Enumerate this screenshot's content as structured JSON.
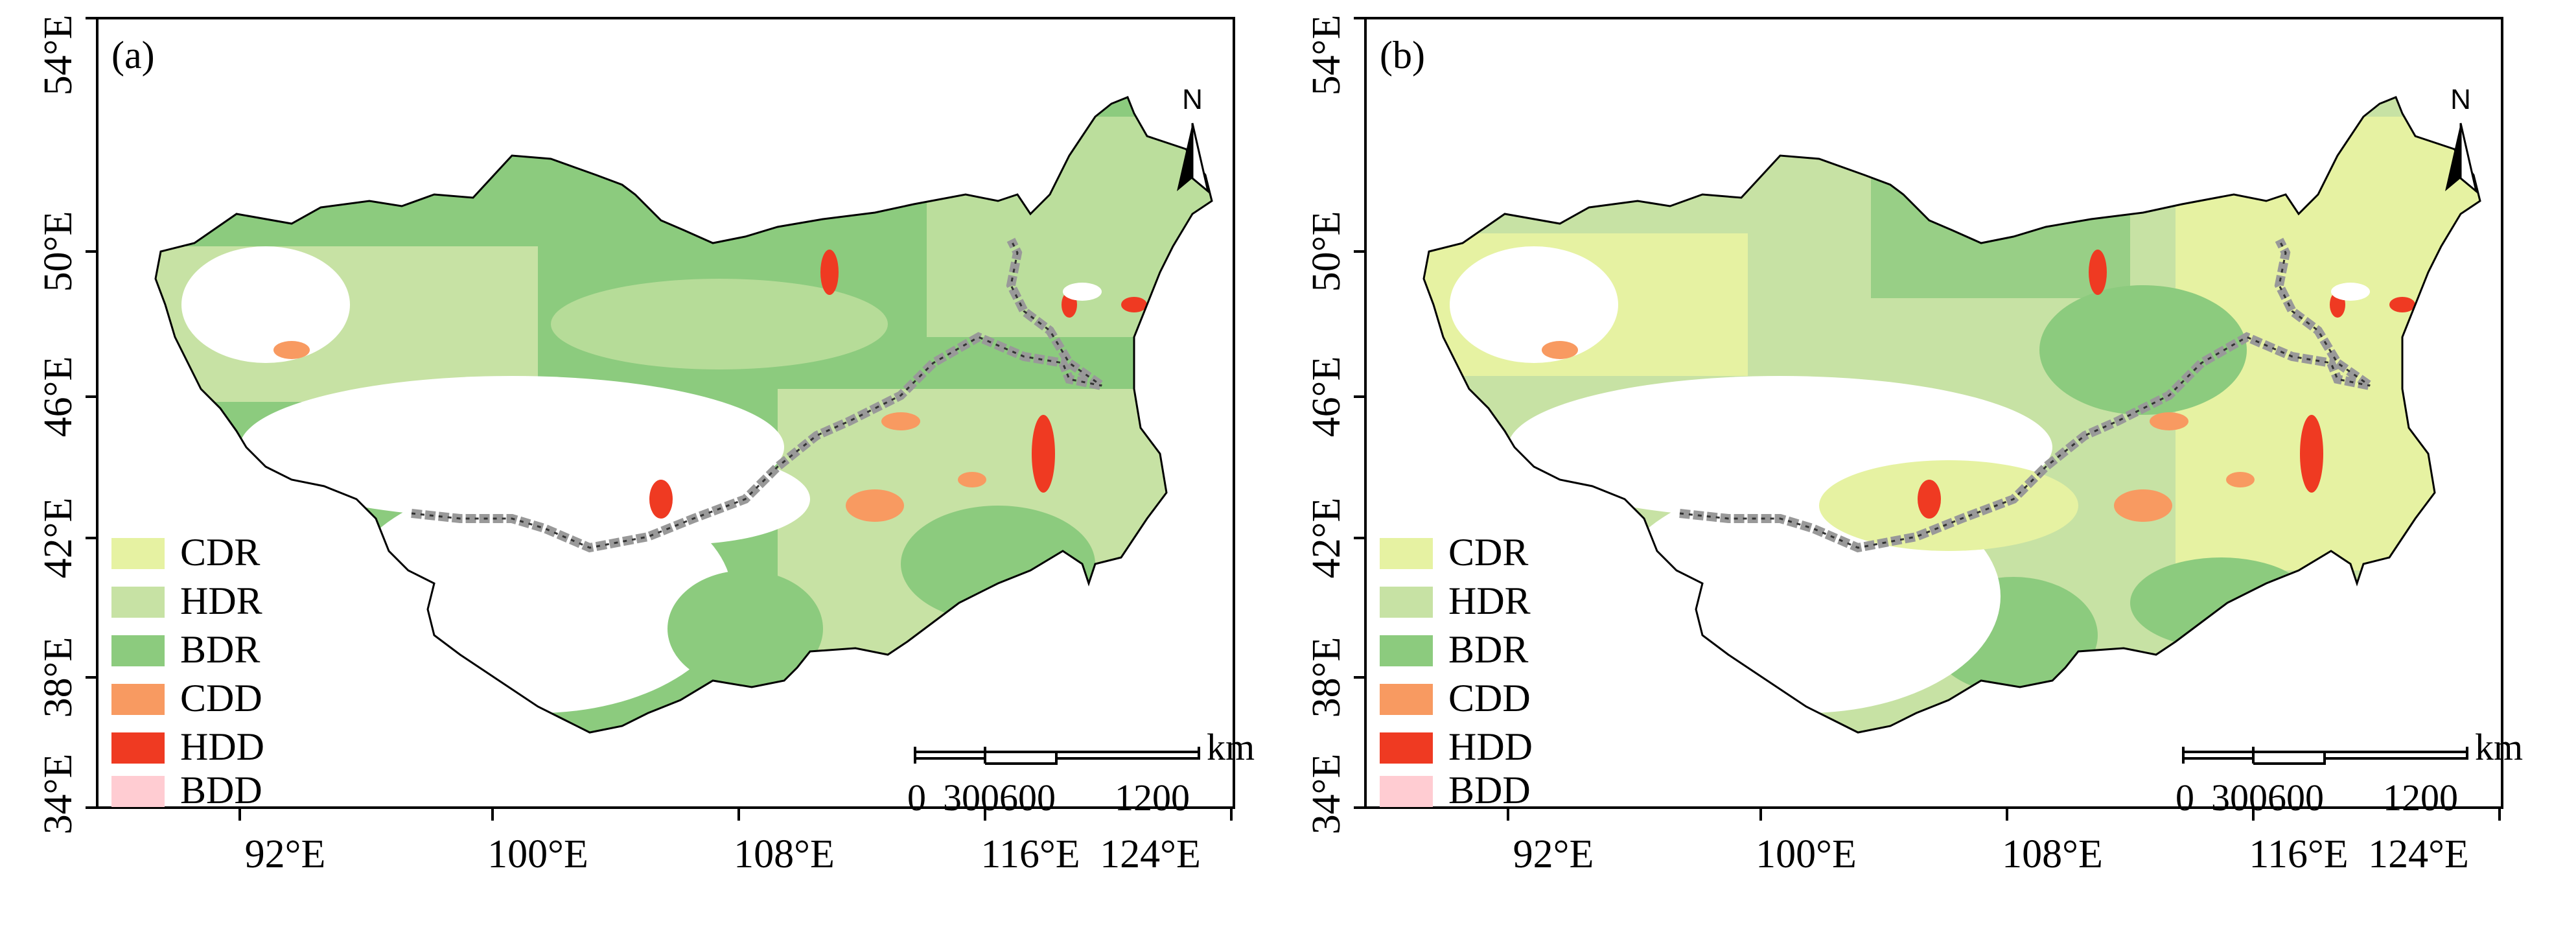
{
  "figure": {
    "panels": [
      {
        "id": "a",
        "label": "(a)",
        "lat_ticks": [
          "34°E",
          "38°E",
          "42°E",
          "46°E",
          "50°E",
          "54°E"
        ],
        "lon_ticks": [
          "92°E",
          "100°E",
          "108°E",
          "116°E",
          "124°E"
        ],
        "legend": [
          {
            "label": "CDR",
            "color": "#e6f2a2"
          },
          {
            "label": "HDR",
            "color": "#c7e2a4"
          },
          {
            "label": "BDR",
            "color": "#8ccb7e"
          },
          {
            "label": "CDD",
            "color": "#f89a61"
          },
          {
            "label": "HDD",
            "color": "#ef3a22"
          },
          {
            "label": "BDD",
            "color": "#ffccd2"
          }
        ],
        "scale_bar": {
          "unit": "km",
          "labels": [
            "0",
            "300600",
            "1200"
          ]
        },
        "north_arrow": "N"
      },
      {
        "id": "b",
        "label": "(b)",
        "lat_ticks": [
          "34°E",
          "38°E",
          "42°E",
          "46°E",
          "50°E",
          "54°E"
        ],
        "lon_ticks": [
          "92°E",
          "100°E",
          "108°E",
          "116°E",
          "124°E"
        ],
        "legend": [
          {
            "label": "CDR",
            "color": "#e6f2a2"
          },
          {
            "label": "HDR",
            "color": "#c7e2a4"
          },
          {
            "label": "BDR",
            "color": "#8ccb7e"
          },
          {
            "label": "CDD",
            "color": "#f89a61"
          },
          {
            "label": "HDD",
            "color": "#ef3a22"
          },
          {
            "label": "BDD",
            "color": "#ffccd2"
          }
        ],
        "scale_bar": {
          "unit": "km",
          "labels": [
            "0",
            "300600",
            "1200"
          ]
        },
        "north_arrow": "N"
      }
    ]
  }
}
